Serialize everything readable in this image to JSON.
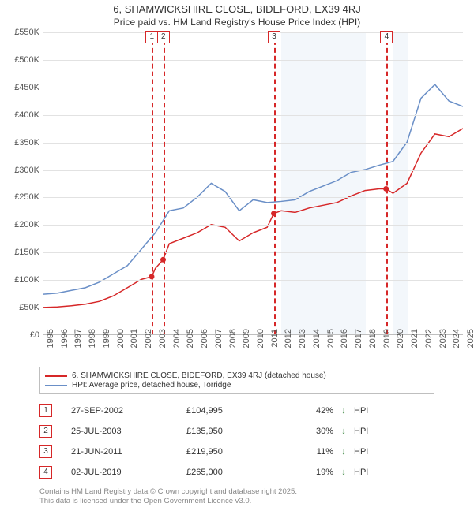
{
  "title": "6, SHAMWICKSHIRE CLOSE, BIDEFORD, EX39 4RJ",
  "subtitle": "Price paid vs. HM Land Registry's House Price Index (HPI)",
  "legend": {
    "series_a": "6, SHAMWICKSHIRE CLOSE, BIDEFORD, EX39 4RJ (detached house)",
    "series_b": "HPI: Average price, detached house, Torridge"
  },
  "footer": {
    "line1": "Contains HM Land Registry data © Crown copyright and database right 2025.",
    "line2": "This data is licensed under the Open Government Licence v3.0."
  },
  "colors": {
    "series_a": "#d62728",
    "series_b": "#6a8fc7",
    "grid": "#e2e2e2",
    "axis": "#bfbfbf",
    "shade": "#f3f7fb",
    "marker_border": "#d62728",
    "text": "#555555",
    "footer_text": "#888888",
    "arrow": "#2f7d32"
  },
  "chart": {
    "type": "line",
    "background_color": "#ffffff",
    "ylim": [
      0,
      550
    ],
    "ytick_step": 50,
    "y_prefix": "£",
    "y_suffix": "K",
    "y_ticks": [
      0,
      50,
      100,
      150,
      200,
      250,
      300,
      350,
      400,
      450,
      500,
      550
    ],
    "xlim": [
      1995,
      2025
    ],
    "x_ticks": [
      1995,
      1996,
      1997,
      1998,
      1999,
      2000,
      2001,
      2002,
      2003,
      2004,
      2005,
      2006,
      2007,
      2008,
      2009,
      2010,
      2011,
      2012,
      2013,
      2014,
      2015,
      2016,
      2017,
      2018,
      2019,
      2020,
      2021,
      2022,
      2023,
      2024,
      2025
    ],
    "shaded_years": [
      2012,
      2013,
      2014,
      2015,
      2016,
      2017,
      2020
    ],
    "line_width": 1.5,
    "title_fontsize": 13,
    "label_fontsize": 11,
    "series_a": {
      "x": [
        1995,
        1996,
        1997,
        1998,
        1999,
        2000,
        2001,
        2002,
        2002.74,
        2003,
        2003.56,
        2004,
        2005,
        2006,
        2007,
        2008,
        2009,
        2010,
        2011,
        2011.47,
        2012,
        2013,
        2014,
        2015,
        2016,
        2017,
        2018,
        2019,
        2019.5,
        2020,
        2021,
        2022,
        2023,
        2024,
        2025
      ],
      "y": [
        49,
        50,
        52,
        55,
        60,
        70,
        85,
        100,
        105,
        120,
        136,
        165,
        175,
        185,
        200,
        195,
        170,
        185,
        195,
        220,
        225,
        222,
        230,
        235,
        240,
        252,
        262,
        265,
        265,
        257,
        275,
        330,
        365,
        360,
        375
      ]
    },
    "series_b": {
      "x": [
        1995,
        1996,
        1997,
        1998,
        1999,
        2000,
        2001,
        2002,
        2003,
        2004,
        2005,
        2006,
        2007,
        2008,
        2009,
        2010,
        2011,
        2012,
        2013,
        2014,
        2015,
        2016,
        2017,
        2018,
        2019,
        2020,
        2021,
        2022,
        2023,
        2024,
        2025
      ],
      "y": [
        73,
        75,
        80,
        85,
        95,
        110,
        125,
        155,
        185,
        225,
        230,
        250,
        275,
        260,
        225,
        245,
        240,
        242,
        245,
        260,
        270,
        280,
        295,
        300,
        308,
        315,
        350,
        430,
        455,
        425,
        415
      ]
    },
    "sale_markers": [
      {
        "n": "1",
        "x": 2002.74,
        "y": 105
      },
      {
        "n": "2",
        "x": 2003.56,
        "y": 136
      },
      {
        "n": "3",
        "x": 2011.47,
        "y": 220
      },
      {
        "n": "4",
        "x": 2019.5,
        "y": 265
      }
    ]
  },
  "sales": [
    {
      "n": "1",
      "date": "27-SEP-2002",
      "price": "£104,995",
      "pct": "42%",
      "arrow": "↓",
      "suffix": "HPI"
    },
    {
      "n": "2",
      "date": "25-JUL-2003",
      "price": "£135,950",
      "pct": "30%",
      "arrow": "↓",
      "suffix": "HPI"
    },
    {
      "n": "3",
      "date": "21-JUN-2011",
      "price": "£219,950",
      "pct": "11%",
      "arrow": "↓",
      "suffix": "HPI"
    },
    {
      "n": "4",
      "date": "02-JUL-2019",
      "price": "£265,000",
      "pct": "19%",
      "arrow": "↓",
      "suffix": "HPI"
    }
  ]
}
